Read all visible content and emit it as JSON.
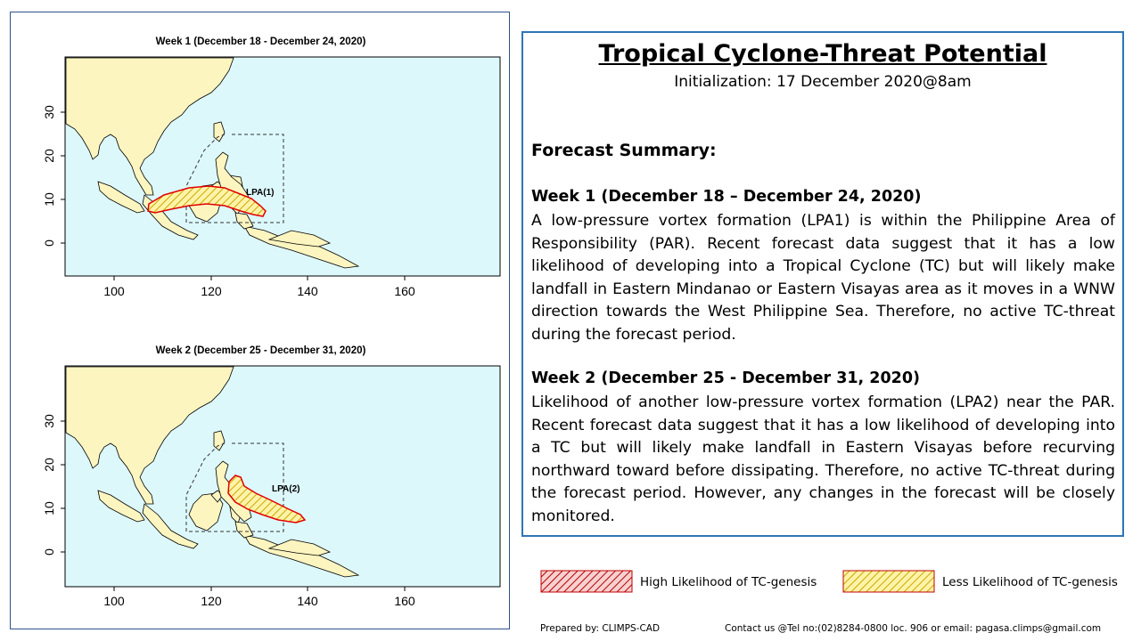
{
  "maps": [
    {
      "title": "Week 1 (December 18 - December 24, 2020)",
      "lpa_label": "LPA(1)",
      "x_ticks": [
        "100",
        "120",
        "140",
        "160"
      ],
      "y_ticks": [
        "30",
        "20",
        "10",
        "0"
      ]
    },
    {
      "title": "Week 2 (December 25 - December 31, 2020)",
      "lpa_label": "LPA(2)",
      "x_ticks": [
        "100",
        "120",
        "140",
        "160"
      ],
      "y_ticks": [
        "30",
        "20",
        "10",
        "0"
      ]
    }
  ],
  "panel": {
    "title": "Tropical Cyclone-Threat Potential",
    "initialization": "Initialization: 17 December 2020@8am",
    "summary_heading": "Forecast Summary:",
    "week1_heading": "Week 1 (December 18 – December 24, 2020)",
    "week1_text": "A low-pressure vortex formation (LPA1) is within the Philippine Area of Responsibility (PAR). Recent forecast data suggest that it has a low likelihood of developing into a Tropical Cyclone (TC) but will likely make landfall in Eastern Mindanao or Eastern Visayas area as it moves in a WNW direction towards the West Philippine Sea. Therefore, no active TC-threat during the forecast period.",
    "week2_heading": "Week 2 (December 25 - December 31, 2020)",
    "week2_text": "Likelihood of another low-pressure vortex formation (LPA2) near the PAR. Recent forecast data suggest that it has a low likelihood of developing into a TC but will likely make landfall in Eastern Visayas before recurving northward toward before dissipating. Therefore, no active TC-threat during the forecast period. However, any changes in the forecast will be closely monitored."
  },
  "legend": {
    "high_label": "High Likelihood of TC-genesis",
    "less_label": "Less Likelihood of TC-genesis"
  },
  "footer": {
    "prepared": "Prepared by: CLIMPS-CAD",
    "contact": "Contact us @Tel no:(02)8284-0800 loc. 906 or email: pagasa.climps@gmail.com"
  },
  "colors": {
    "ocean": "#ddf8fb",
    "land": "#fdf5c0",
    "hatch_red": "#c00000",
    "hatch_yellow": "#f0d84a",
    "panel_border": "#2e75b6"
  }
}
